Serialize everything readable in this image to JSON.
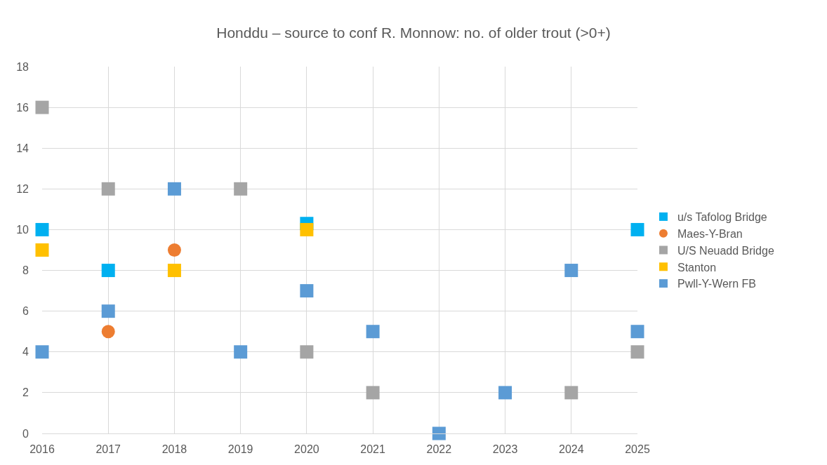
{
  "chart_data": {
    "type": "scatter",
    "title": "Honddu – source to conf R. Monnow: no. of older trout (>0+)",
    "categories": [
      "2016",
      "2017",
      "2018",
      "2019",
      "2020",
      "2021",
      "2022",
      "2023",
      "2024",
      "2025"
    ],
    "series": [
      {
        "name": "u/s Tafolog Bridge",
        "color": "#00b0f0",
        "marker": "square",
        "values": [
          10,
          8,
          null,
          null,
          10.3,
          null,
          null,
          null,
          null,
          10
        ]
      },
      {
        "name": "Maes-Y-Bran",
        "color": "#ed7d31",
        "marker": "circle",
        "values": [
          null,
          5,
          9,
          null,
          null,
          null,
          null,
          null,
          null,
          null
        ]
      },
      {
        "name": "U/S Neuadd Bridge",
        "color": "#a5a5a5",
        "marker": "square",
        "values": [
          16,
          12,
          null,
          12,
          4,
          2,
          null,
          null,
          2,
          4
        ]
      },
      {
        "name": "Stanton",
        "color": "#ffc000",
        "marker": "square",
        "values": [
          9,
          null,
          8,
          null,
          10,
          null,
          null,
          null,
          null,
          null
        ]
      },
      {
        "name": "Pwll-Y-Wern FB",
        "color": "#5b9bd5",
        "marker": "square",
        "values": [
          4,
          6,
          12,
          4,
          7,
          5,
          0,
          2,
          8,
          5
        ]
      }
    ],
    "ylim": [
      0,
      18
    ],
    "yticks": [
      0,
      2,
      4,
      6,
      8,
      10,
      12,
      14,
      16,
      18
    ],
    "grid": true,
    "legend": "right"
  }
}
